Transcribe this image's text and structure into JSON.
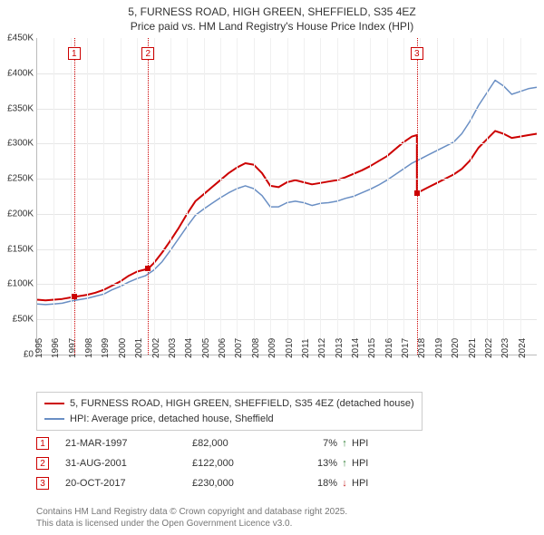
{
  "title": {
    "line1": "5, FURNESS ROAD, HIGH GREEN, SHEFFIELD, S35 4EZ",
    "line2": "Price paid vs. HM Land Registry's House Price Index (HPI)"
  },
  "chart": {
    "type": "line",
    "x_start": 1995,
    "x_end": 2025,
    "xtick_step": 1,
    "xticks": [
      1995,
      1996,
      1997,
      1998,
      1999,
      2000,
      2001,
      2002,
      2003,
      2004,
      2005,
      2006,
      2007,
      2008,
      2009,
      2010,
      2011,
      2012,
      2013,
      2014,
      2015,
      2016,
      2017,
      2018,
      2019,
      2020,
      2021,
      2022,
      2023,
      2024
    ],
    "ylim": [
      0,
      450000
    ],
    "ytick_step": 50000,
    "yticks": [
      0,
      50000,
      100000,
      150000,
      200000,
      250000,
      300000,
      350000,
      400000,
      450000
    ],
    "ytick_labels": [
      "£0",
      "£50K",
      "£100K",
      "£150K",
      "£200K",
      "£250K",
      "£300K",
      "£350K",
      "£400K",
      "£450K"
    ],
    "background_color": "#ffffff",
    "grid_color": "#e6e6e6",
    "axis_color": "#bbbbbb",
    "tick_font_size": 10,
    "title_font_size": 12,
    "series": [
      {
        "label": "5, FURNESS ROAD, HIGH GREEN, SHEFFIELD, S35 4EZ (detached house)",
        "color": "#cc0000",
        "stroke_width": 2,
        "points": [
          [
            1995.0,
            78000
          ],
          [
            1995.5,
            77000
          ],
          [
            1996.0,
            78000
          ],
          [
            1996.5,
            79000
          ],
          [
            1997.22,
            82000
          ],
          [
            1997.5,
            83000
          ],
          [
            1998.0,
            85000
          ],
          [
            1998.5,
            88000
          ],
          [
            1999.0,
            92000
          ],
          [
            1999.5,
            98000
          ],
          [
            2000.0,
            104000
          ],
          [
            2000.5,
            112000
          ],
          [
            2001.0,
            118000
          ],
          [
            2001.66,
            122000
          ],
          [
            2002.0,
            130000
          ],
          [
            2002.5,
            145000
          ],
          [
            2003.0,
            162000
          ],
          [
            2003.5,
            180000
          ],
          [
            2004.0,
            200000
          ],
          [
            2004.5,
            218000
          ],
          [
            2005.0,
            228000
          ],
          [
            2005.5,
            238000
          ],
          [
            2006.0,
            248000
          ],
          [
            2006.5,
            258000
          ],
          [
            2007.0,
            266000
          ],
          [
            2007.5,
            272000
          ],
          [
            2008.0,
            270000
          ],
          [
            2008.5,
            258000
          ],
          [
            2009.0,
            240000
          ],
          [
            2009.5,
            238000
          ],
          [
            2010.0,
            245000
          ],
          [
            2010.5,
            248000
          ],
          [
            2011.0,
            245000
          ],
          [
            2011.5,
            242000
          ],
          [
            2012.0,
            244000
          ],
          [
            2012.5,
            246000
          ],
          [
            2013.0,
            248000
          ],
          [
            2013.5,
            252000
          ],
          [
            2014.0,
            257000
          ],
          [
            2014.5,
            262000
          ],
          [
            2015.0,
            268000
          ],
          [
            2015.5,
            275000
          ],
          [
            2016.0,
            282000
          ],
          [
            2016.5,
            292000
          ],
          [
            2017.0,
            302000
          ],
          [
            2017.5,
            310000
          ],
          [
            2017.8,
            312000
          ],
          [
            2017.8,
            230000
          ],
          [
            2018.0,
            232000
          ],
          [
            2018.5,
            238000
          ],
          [
            2019.0,
            244000
          ],
          [
            2019.5,
            250000
          ],
          [
            2020.0,
            256000
          ],
          [
            2020.5,
            264000
          ],
          [
            2021.0,
            276000
          ],
          [
            2021.5,
            294000
          ],
          [
            2022.0,
            306000
          ],
          [
            2022.5,
            318000
          ],
          [
            2023.0,
            314000
          ],
          [
            2023.5,
            308000
          ],
          [
            2024.0,
            310000
          ],
          [
            2024.5,
            312000
          ],
          [
            2025.0,
            314000
          ]
        ]
      },
      {
        "label": "HPI: Average price, detached house, Sheffield",
        "color": "#6a8fc4",
        "stroke_width": 1.5,
        "points": [
          [
            1995.0,
            72000
          ],
          [
            1995.5,
            71000
          ],
          [
            1996.0,
            72000
          ],
          [
            1996.5,
            73000
          ],
          [
            1997.0,
            76000
          ],
          [
            1997.5,
            78000
          ],
          [
            1998.0,
            80000
          ],
          [
            1998.5,
            83000
          ],
          [
            1999.0,
            86000
          ],
          [
            1999.5,
            92000
          ],
          [
            2000.0,
            97000
          ],
          [
            2000.5,
            103000
          ],
          [
            2001.0,
            108000
          ],
          [
            2001.5,
            112000
          ],
          [
            2002.0,
            120000
          ],
          [
            2002.5,
            132000
          ],
          [
            2003.0,
            148000
          ],
          [
            2003.5,
            165000
          ],
          [
            2004.0,
            182000
          ],
          [
            2004.5,
            198000
          ],
          [
            2005.0,
            207000
          ],
          [
            2005.5,
            215000
          ],
          [
            2006.0,
            223000
          ],
          [
            2006.5,
            230000
          ],
          [
            2007.0,
            236000
          ],
          [
            2007.5,
            240000
          ],
          [
            2008.0,
            236000
          ],
          [
            2008.5,
            226000
          ],
          [
            2009.0,
            210000
          ],
          [
            2009.5,
            210000
          ],
          [
            2010.0,
            216000
          ],
          [
            2010.5,
            218000
          ],
          [
            2011.0,
            216000
          ],
          [
            2011.5,
            212000
          ],
          [
            2012.0,
            215000
          ],
          [
            2012.5,
            216000
          ],
          [
            2013.0,
            218000
          ],
          [
            2013.5,
            222000
          ],
          [
            2014.0,
            225000
          ],
          [
            2014.5,
            230000
          ],
          [
            2015.0,
            235000
          ],
          [
            2015.5,
            241000
          ],
          [
            2016.0,
            248000
          ],
          [
            2016.5,
            256000
          ],
          [
            2017.0,
            264000
          ],
          [
            2017.5,
            272000
          ],
          [
            2018.0,
            278000
          ],
          [
            2018.5,
            284000
          ],
          [
            2019.0,
            290000
          ],
          [
            2019.5,
            296000
          ],
          [
            2020.0,
            302000
          ],
          [
            2020.5,
            314000
          ],
          [
            2021.0,
            332000
          ],
          [
            2021.5,
            354000
          ],
          [
            2022.0,
            372000
          ],
          [
            2022.5,
            390000
          ],
          [
            2023.0,
            382000
          ],
          [
            2023.5,
            370000
          ],
          [
            2024.0,
            374000
          ],
          [
            2024.5,
            378000
          ],
          [
            2025.0,
            380000
          ]
        ]
      }
    ],
    "sale_markers": [
      {
        "n": "1",
        "x": 1997.22,
        "y": 82000,
        "badge_y_offset": -56
      },
      {
        "n": "2",
        "x": 2001.66,
        "y": 122000,
        "badge_y_offset": -56
      },
      {
        "n": "3",
        "x": 2017.8,
        "y": 230000,
        "badge_y_offset": -56
      }
    ],
    "marker_color": "#cc0000"
  },
  "legend": {
    "items": [
      {
        "color": "#cc0000",
        "label": "5, FURNESS ROAD, HIGH GREEN, SHEFFIELD, S35 4EZ (detached house)"
      },
      {
        "color": "#6a8fc4",
        "label": "HPI: Average price, detached house, Sheffield"
      }
    ]
  },
  "sales": [
    {
      "n": "1",
      "date": "21-MAR-1997",
      "price": "£82,000",
      "pct": "7%",
      "arrow": "↑",
      "arrow_color": "#2e7d32",
      "hpi": "HPI"
    },
    {
      "n": "2",
      "date": "31-AUG-2001",
      "price": "£122,000",
      "pct": "13%",
      "arrow": "↑",
      "arrow_color": "#2e7d32",
      "hpi": "HPI"
    },
    {
      "n": "3",
      "date": "20-OCT-2017",
      "price": "£230,000",
      "pct": "18%",
      "arrow": "↓",
      "arrow_color": "#c62828",
      "hpi": "HPI"
    }
  ],
  "footer": {
    "line1": "Contains HM Land Registry data © Crown copyright and database right 2025.",
    "line2": "This data is licensed under the Open Government Licence v3.0."
  }
}
